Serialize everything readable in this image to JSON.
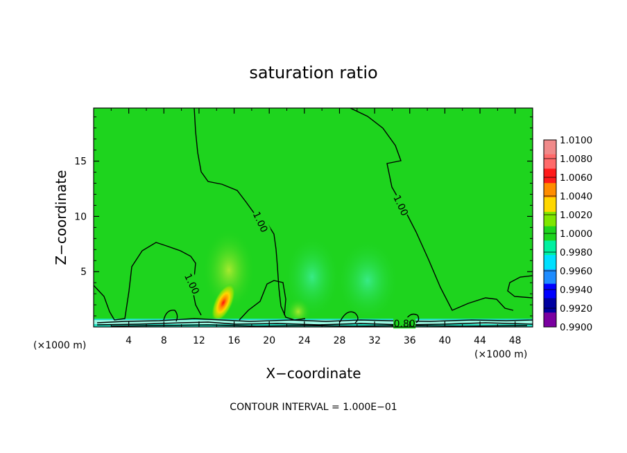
{
  "chart_data": {
    "type": "heatmap",
    "title": "saturation ratio",
    "xlabel": "X−coordinate",
    "ylabel": "Z−coordinate",
    "x_unit": "(×1000 m)",
    "xlim": [
      0,
      50
    ],
    "ylim": [
      0,
      19.8
    ],
    "x_ticks": [
      4,
      8,
      12,
      16,
      20,
      24,
      28,
      32,
      36,
      40,
      44,
      48
    ],
    "y_ticks": [
      5,
      10,
      15
    ],
    "background_value": 1.0,
    "colorbar": {
      "levels": [
        1.01,
        1.008,
        1.006,
        1.004,
        1.002,
        1.0,
        0.998,
        0.996,
        0.994,
        0.992,
        0.99
      ],
      "labels": [
        "1.0100",
        "1.0080",
        "1.0060",
        "1.0040",
        "1.0020",
        "1.0000",
        "0.9980",
        "0.9960",
        "0.9940",
        "0.9920",
        "0.9900"
      ],
      "colors": [
        "#f08a8a",
        "#ff6a6a",
        "#ff1a1a",
        "#ff8c00",
        "#ffd700",
        "#7fe600",
        "#1ed41e",
        "#00f0a0",
        "#00e0ff",
        "#1e8cff",
        "#0000ff",
        "#0000a0",
        "#7a00a0"
      ]
    },
    "contour_labels": [
      {
        "text": "1.00",
        "x": 19.0,
        "z": 9.5
      },
      {
        "text": "1.00",
        "x": 11.2,
        "z": 3.9
      },
      {
        "text": "1.00",
        "x": 35.0,
        "z": 11.0
      },
      {
        "text": "0.80",
        "x": 35.4,
        "z": 0.3
      }
    ],
    "footer": "CONTOUR INTERVAL = 1.000E−01"
  }
}
